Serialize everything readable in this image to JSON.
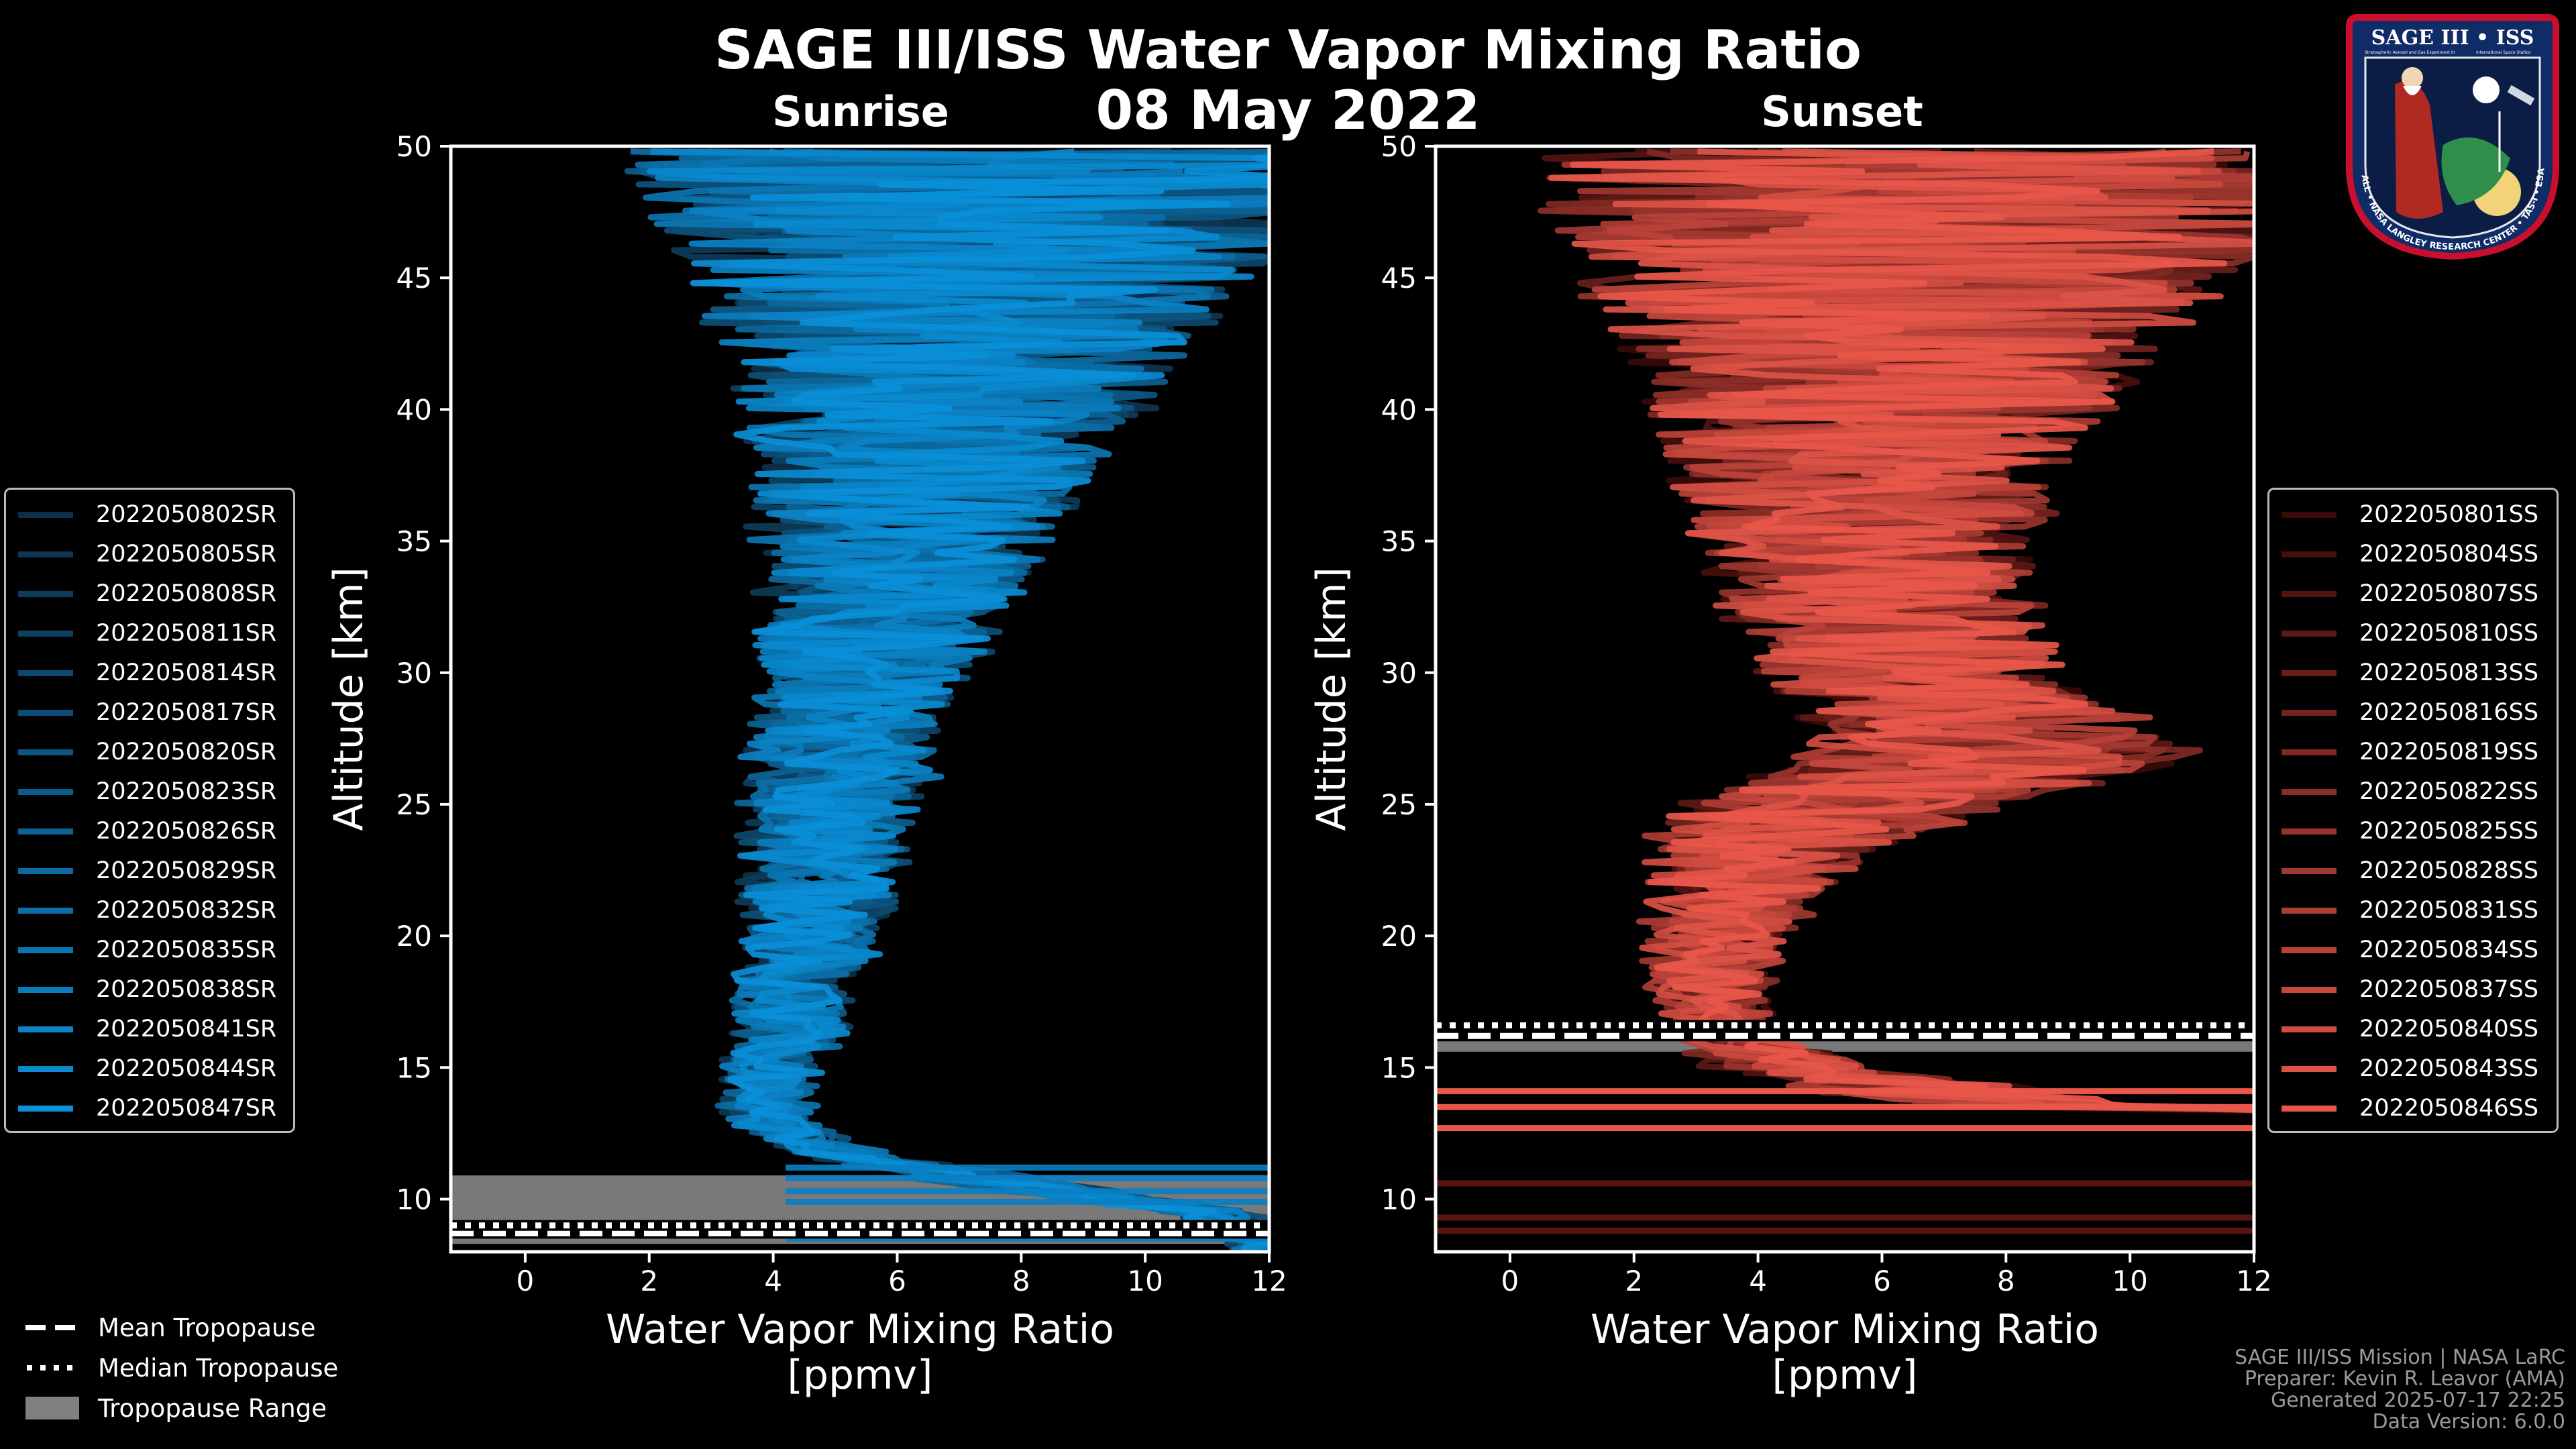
{
  "title": "SAGE III/ISS Water Vapor Mixing Ratio",
  "date": "08 May 2022",
  "logo": {
    "text_top": "SAGE III • ISS",
    "text_bottom": "BALL • NASA LANGLEY RESEARCH CENTER • TAS-I • ESA",
    "text_small_left": "Stratospheric Aerosol and Gas Experiment III",
    "text_small_right": "International Space Station"
  },
  "chart_data": [
    {
      "type": "line",
      "panel": "Sunrise",
      "title": "Sunrise",
      "xlabel": "Water Vapor Mixing Ratio\n[ppmv]",
      "ylabel": "Altitude [km]",
      "xlim": [
        -1.2,
        12
      ],
      "ylim": [
        8,
        50
      ],
      "xticks": [
        0,
        2,
        4,
        6,
        8,
        10,
        12
      ],
      "yticks": [
        10,
        15,
        20,
        25,
        30,
        35,
        40,
        45,
        50
      ],
      "series_color_from": "#0e2f47",
      "series_color_to": "#0a8fd8",
      "series": [
        {
          "name": "2022050802SR"
        },
        {
          "name": "2022050805SR"
        },
        {
          "name": "2022050808SR"
        },
        {
          "name": "2022050811SR"
        },
        {
          "name": "2022050814SR"
        },
        {
          "name": "2022050817SR"
        },
        {
          "name": "2022050820SR"
        },
        {
          "name": "2022050823SR"
        },
        {
          "name": "2022050826SR"
        },
        {
          "name": "2022050829SR"
        },
        {
          "name": "2022050832SR"
        },
        {
          "name": "2022050835SR"
        },
        {
          "name": "2022050838SR"
        },
        {
          "name": "2022050841SR"
        },
        {
          "name": "2022050844SR"
        },
        {
          "name": "2022050847SR"
        }
      ],
      "profile_mean": {
        "altitude": [
          8.5,
          9.5,
          10.5,
          11.5,
          12.5,
          13.5,
          15,
          17,
          19,
          21,
          23,
          25,
          27,
          29,
          31,
          33,
          35,
          37,
          39,
          41,
          43,
          45,
          47,
          49
        ],
        "value": [
          12,
          11,
          8,
          5.5,
          4.2,
          3.9,
          4.0,
          4.3,
          4.5,
          4.7,
          4.9,
          5.0,
          5.1,
          5.3,
          5.6,
          5.9,
          6.1,
          6.3,
          6.6,
          6.9,
          7.1,
          7.2,
          7.4,
          7.5
        ],
        "spread": [
          0.5,
          0.5,
          0.8,
          0.6,
          0.5,
          0.5,
          0.6,
          0.7,
          0.8,
          0.9,
          1.0,
          1.1,
          1.2,
          1.3,
          1.5,
          1.7,
          1.9,
          2.1,
          2.4,
          2.8,
          3.2,
          3.7,
          4.3,
          4.8
        ]
      },
      "tropopause": {
        "mean": 8.7,
        "median": 9.0,
        "min": 8.3,
        "max": 10.9
      }
    },
    {
      "type": "line",
      "panel": "Sunset",
      "title": "Sunset",
      "xlabel": "Water Vapor Mixing Ratio\n[ppmv]",
      "ylabel": "Altitude [km]",
      "xlim": [
        -1.2,
        12
      ],
      "ylim": [
        8,
        50
      ],
      "xticks": [
        0,
        2,
        4,
        6,
        8,
        10,
        12
      ],
      "yticks": [
        10,
        15,
        20,
        25,
        30,
        35,
        40,
        45,
        50
      ],
      "series_color_from": "#3a0a09",
      "series_color_to": "#e8574a",
      "series": [
        {
          "name": "2022050801SS"
        },
        {
          "name": "2022050804SS"
        },
        {
          "name": "2022050807SS"
        },
        {
          "name": "2022050810SS"
        },
        {
          "name": "2022050813SS"
        },
        {
          "name": "2022050816SS"
        },
        {
          "name": "2022050819SS"
        },
        {
          "name": "2022050822SS"
        },
        {
          "name": "2022050825SS"
        },
        {
          "name": "2022050828SS"
        },
        {
          "name": "2022050831SS"
        },
        {
          "name": "2022050834SS"
        },
        {
          "name": "2022050837SS"
        },
        {
          "name": "2022050840SS"
        },
        {
          "name": "2022050843SS"
        },
        {
          "name": "2022050846SS"
        }
      ],
      "profile_mean": {
        "altitude": [
          13,
          14,
          15,
          16,
          17,
          18,
          19,
          20,
          21,
          22,
          23,
          24,
          25,
          26,
          27,
          28,
          30,
          32,
          34,
          36,
          38,
          40,
          42,
          44,
          46,
          48,
          49.5
        ],
        "value": [
          10,
          7,
          4.5,
          3.6,
          3.3,
          3.2,
          3.3,
          3.4,
          3.6,
          3.8,
          4.0,
          4.5,
          5.5,
          7.0,
          8.0,
          7.6,
          6.5,
          6.0,
          5.8,
          5.7,
          5.8,
          6.0,
          6.2,
          6.4,
          6.5,
          6.6,
          6.7
        ],
        "spread": [
          1.5,
          1.5,
          1.2,
          0.6,
          0.6,
          0.7,
          0.8,
          0.9,
          1.0,
          1.2,
          1.4,
          1.8,
          2.2,
          2.5,
          2.5,
          2.2,
          2.0,
          2.0,
          2.1,
          2.3,
          2.6,
          3.0,
          3.5,
          4.0,
          4.5,
          5.0,
          5.0
        ]
      },
      "tropopause": {
        "mean": 16.2,
        "median": 16.6,
        "min": 15.6,
        "max": 16.8
      }
    }
  ],
  "tropopause_legend": {
    "mean_label": "Mean Tropopause",
    "median_label": "Median Tropopause",
    "range_label": "Tropopause Range"
  },
  "footer": {
    "line1": "SAGE III/ISS Mission | NASA LaRC",
    "line2": "Preparer: Kevin R. Leavor (AMA)",
    "line3": "Generated 2025-07-17 22:25",
    "line4": "Data Version: 6.0.0"
  }
}
